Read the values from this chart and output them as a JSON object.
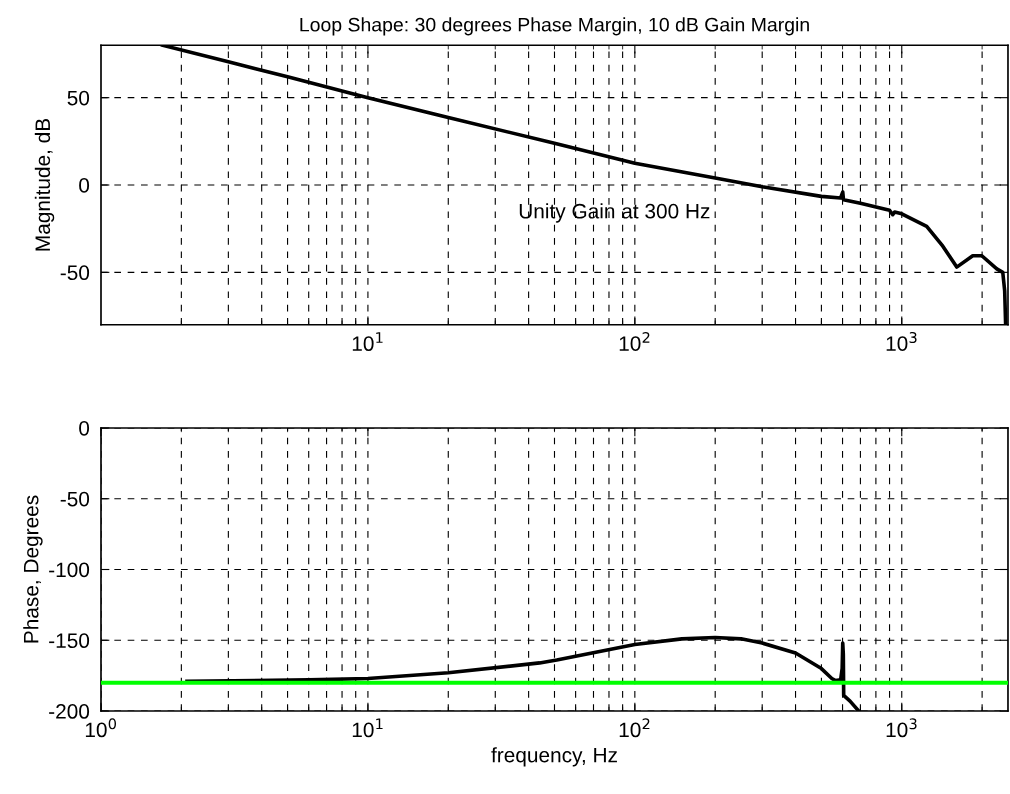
{
  "chart_data": [
    {
      "type": "line",
      "title": "Loop Shape: 30 degrees Phase Margin, 10 dB Gain Margin",
      "ylabel": "Magnitude, dB",
      "log": "x",
      "grid": true,
      "xlim": [
        1,
        2500
      ],
      "xticks": [
        {
          "value": 10,
          "label": "10$^{1}$"
        },
        {
          "value": 100,
          "label": "10$^{2}$"
        },
        {
          "value": 1000,
          "label": "10$^{3}$"
        }
      ],
      "ylim": [
        -80,
        80
      ],
      "yticks": [
        {
          "value": -50,
          "label": "-50"
        },
        0,
        50
      ],
      "annotations": [
        "Unity Gain at 300 Hz"
      ],
      "series": [
        {
          "color": "#000000",
          "x": [
            1.7,
            3,
            5,
            10,
            20,
            50,
            100,
            200,
            300,
            500,
            590,
            601,
            605,
            700,
            900,
            925,
            940,
            1000,
            1240,
            1425,
            1607,
            1845,
            1995,
            2270,
            2390,
            2430,
            2450
          ],
          "values": [
            80,
            70.5,
            62,
            50,
            38.6,
            23.9,
            12.5,
            4,
            -1,
            -6.5,
            -7.4,
            -4,
            -8.5,
            -10.5,
            -14.5,
            -17,
            -15.5,
            -16.5,
            -23.7,
            -35,
            -47,
            -40.5,
            -40.5,
            -48,
            -50,
            -60.6,
            -80
          ]
        }
      ]
    },
    {
      "type": "line",
      "xlabel": "frequency, Hz",
      "ylabel": "Phase, Degrees",
      "log": "x",
      "grid": true,
      "xlim": [
        1,
        2500
      ],
      "xticks": [
        {
          "value": 1,
          "label": "10$^{0}$"
        },
        {
          "value": 10,
          "label": "10$^{1}$"
        },
        {
          "value": 100,
          "label": "10$^{2}$"
        },
        {
          "value": 1000,
          "label": "10$^{3}$"
        }
      ],
      "ylim": [
        -200,
        0
      ],
      "yticks": [
        {
          "value": -200,
          "label": "-200"
        },
        {
          "value": -150,
          "label": "-150"
        },
        {
          "value": -100,
          "label": "-100"
        },
        {
          "value": -50,
          "label": "-50"
        },
        0
      ],
      "ref_lines": [
        {
          "axis": "y",
          "value": -180,
          "color": "#00ff00"
        }
      ],
      "series": [
        {
          "color": "#000000",
          "x": [
            2.1,
            6,
            10,
            20,
            44,
            51,
            100,
            150,
            200,
            250,
            300,
            400,
            500,
            547,
            565,
            590,
            598,
            601,
            604,
            606,
            640,
            690
          ],
          "values": [
            -179,
            -178,
            -177,
            -173,
            -166,
            -164,
            -153,
            -149,
            -148,
            -149,
            -152,
            -159,
            -170,
            -177,
            -178.5,
            -178,
            -170,
            -152,
            -160,
            -189,
            -193,
            -200
          ]
        }
      ]
    }
  ]
}
